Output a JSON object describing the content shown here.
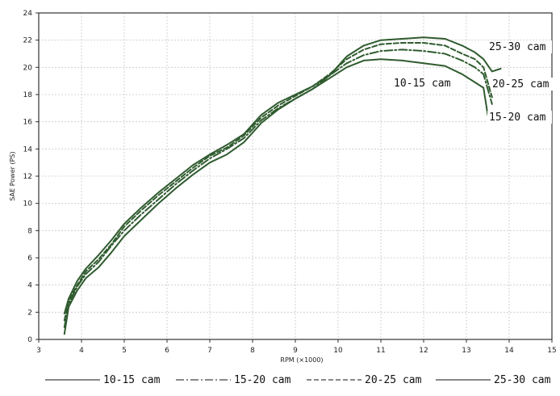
{
  "chart_data": {
    "type": "line",
    "xlabel": "RPM (×1000)",
    "ylabel": "SAE Power (PS)",
    "xlim": [
      3,
      15
    ],
    "ylim": [
      0,
      24
    ],
    "x_ticks": [
      "3",
      "4",
      "5",
      "6",
      "7",
      "8",
      "9",
      "10",
      "11",
      "12",
      "13",
      "14",
      "15"
    ],
    "y_ticks": [
      "0",
      "2",
      "4",
      "6",
      "8",
      "10",
      "12",
      "14",
      "16",
      "18",
      "20",
      "22",
      "24"
    ],
    "grid": true,
    "legend_position": "bottom",
    "line_color": "#2f5b2f",
    "series": [
      {
        "name": "10-15 cam",
        "dash": "solid",
        "annotation": "10-15 cam",
        "points": [
          [
            3.6,
            0.4
          ],
          [
            3.7,
            2.4
          ],
          [
            3.9,
            3.6
          ],
          [
            4.1,
            4.5
          ],
          [
            4.4,
            5.3
          ],
          [
            4.7,
            6.4
          ],
          [
            5.0,
            7.6
          ],
          [
            5.4,
            8.8
          ],
          [
            5.8,
            10.0
          ],
          [
            6.2,
            11.1
          ],
          [
            6.6,
            12.1
          ],
          [
            7.0,
            13.0
          ],
          [
            7.4,
            13.6
          ],
          [
            7.8,
            14.5
          ],
          [
            8.2,
            15.9
          ],
          [
            8.6,
            16.9
          ],
          [
            9.0,
            17.7
          ],
          [
            9.4,
            18.4
          ],
          [
            9.8,
            19.2
          ],
          [
            10.2,
            20.0
          ],
          [
            10.6,
            20.5
          ],
          [
            11.0,
            20.6
          ],
          [
            11.5,
            20.5
          ],
          [
            12.0,
            20.3
          ],
          [
            12.5,
            20.1
          ],
          [
            12.9,
            19.5
          ],
          [
            13.2,
            18.9
          ],
          [
            13.4,
            18.5
          ],
          [
            13.5,
            16.5
          ]
        ]
      },
      {
        "name": "15-20 cam",
        "dash": "dashdot",
        "annotation": "15-20 cam",
        "points": [
          [
            3.6,
            0.9
          ],
          [
            3.7,
            2.6
          ],
          [
            3.9,
            3.9
          ],
          [
            4.1,
            4.8
          ],
          [
            4.4,
            5.7
          ],
          [
            4.7,
            6.9
          ],
          [
            5.0,
            8.0
          ],
          [
            5.4,
            9.2
          ],
          [
            5.8,
            10.3
          ],
          [
            6.2,
            11.4
          ],
          [
            6.6,
            12.4
          ],
          [
            7.0,
            13.3
          ],
          [
            7.4,
            14.0
          ],
          [
            7.8,
            14.8
          ],
          [
            8.2,
            16.1
          ],
          [
            8.6,
            17.0
          ],
          [
            9.0,
            17.7
          ],
          [
            9.4,
            18.4
          ],
          [
            9.8,
            19.4
          ],
          [
            10.2,
            20.3
          ],
          [
            10.6,
            20.9
          ],
          [
            11.0,
            21.2
          ],
          [
            11.5,
            21.3
          ],
          [
            12.0,
            21.2
          ],
          [
            12.5,
            21.0
          ],
          [
            12.9,
            20.5
          ],
          [
            13.2,
            20.0
          ],
          [
            13.4,
            19.5
          ],
          [
            13.6,
            17.3
          ]
        ]
      },
      {
        "name": "20-25 cam",
        "dash": "dashed",
        "annotation": "20-25 cam",
        "points": [
          [
            3.6,
            1.4
          ],
          [
            3.7,
            2.8
          ],
          [
            3.9,
            4.0
          ],
          [
            4.1,
            5.0
          ],
          [
            4.4,
            5.9
          ],
          [
            4.7,
            7.0
          ],
          [
            5.0,
            8.3
          ],
          [
            5.4,
            9.5
          ],
          [
            5.8,
            10.6
          ],
          [
            6.2,
            11.6
          ],
          [
            6.6,
            12.6
          ],
          [
            7.0,
            13.5
          ],
          [
            7.4,
            14.1
          ],
          [
            7.8,
            15.0
          ],
          [
            8.2,
            16.3
          ],
          [
            8.6,
            17.2
          ],
          [
            9.0,
            17.9
          ],
          [
            9.4,
            18.6
          ],
          [
            9.8,
            19.5
          ],
          [
            10.2,
            20.6
          ],
          [
            10.6,
            21.3
          ],
          [
            11.0,
            21.7
          ],
          [
            11.5,
            21.8
          ],
          [
            12.0,
            21.8
          ],
          [
            12.5,
            21.6
          ],
          [
            12.9,
            21.0
          ],
          [
            13.2,
            20.6
          ],
          [
            13.4,
            20.0
          ],
          [
            13.6,
            17.8
          ]
        ]
      },
      {
        "name": "25-30 cam",
        "dash": "solid",
        "annotation": "25-30 cam",
        "points": [
          [
            3.6,
            1.9
          ],
          [
            3.7,
            3.0
          ],
          [
            3.9,
            4.3
          ],
          [
            4.1,
            5.2
          ],
          [
            4.4,
            6.2
          ],
          [
            4.7,
            7.3
          ],
          [
            5.0,
            8.5
          ],
          [
            5.4,
            9.7
          ],
          [
            5.8,
            10.8
          ],
          [
            6.2,
            11.8
          ],
          [
            6.6,
            12.8
          ],
          [
            7.0,
            13.6
          ],
          [
            7.4,
            14.3
          ],
          [
            7.8,
            15.1
          ],
          [
            8.2,
            16.5
          ],
          [
            8.6,
            17.4
          ],
          [
            9.0,
            18.0
          ],
          [
            9.4,
            18.6
          ],
          [
            9.8,
            19.4
          ],
          [
            10.2,
            20.8
          ],
          [
            10.6,
            21.6
          ],
          [
            11.0,
            22.0
          ],
          [
            11.5,
            22.1
          ],
          [
            12.0,
            22.2
          ],
          [
            12.5,
            22.1
          ],
          [
            12.9,
            21.6
          ],
          [
            13.2,
            21.1
          ],
          [
            13.4,
            20.6
          ],
          [
            13.6,
            19.7
          ],
          [
            13.8,
            19.9
          ]
        ]
      }
    ]
  }
}
